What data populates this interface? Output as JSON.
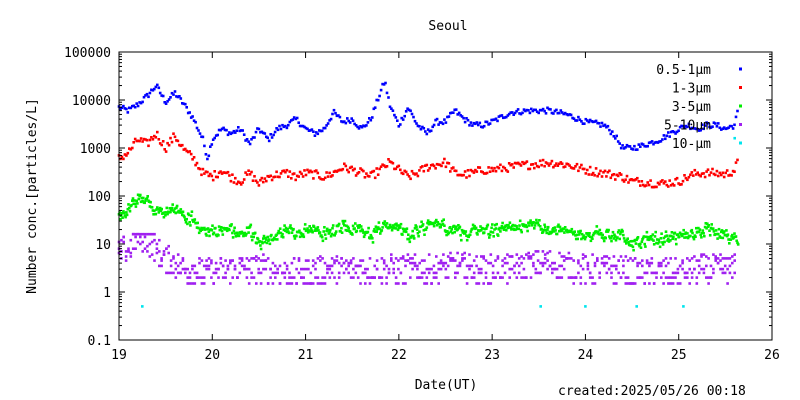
{
  "footer": {
    "created": "created:2025/05/26 00:18"
  },
  "chart_data": {
    "type": "scatter",
    "title": "Seoul",
    "xlabel": "Date(UT)",
    "ylabel": "Number conc.[particles/L]",
    "xlim": [
      19,
      26
    ],
    "ylim": [
      0.1,
      100000
    ],
    "y_scale": "log",
    "x_ticks": [
      "19",
      "20",
      "21",
      "22",
      "23",
      "24",
      "25",
      "26"
    ],
    "y_ticks": [
      "0.1",
      "1",
      "10",
      "100",
      "1000",
      "10000",
      "100000"
    ],
    "legend_position": "top-right",
    "grid": false,
    "series": [
      {
        "name": "0.5-1μm",
        "color": "#0000ff",
        "x": [
          19.0,
          19.1,
          19.2,
          19.3,
          19.4,
          19.5,
          19.6,
          19.7,
          19.8,
          19.9,
          19.95,
          20.0,
          20.1,
          20.2,
          20.3,
          20.4,
          20.5,
          20.6,
          20.7,
          20.8,
          20.9,
          21.0,
          21.1,
          21.2,
          21.3,
          21.4,
          21.5,
          21.6,
          21.7,
          21.8,
          21.85,
          21.9,
          22.0,
          22.1,
          22.2,
          22.3,
          22.4,
          22.5,
          22.6,
          22.7,
          22.8,
          22.9,
          23.0,
          23.2,
          23.4,
          23.6,
          23.8,
          24.0,
          24.2,
          24.3,
          24.4,
          24.5,
          24.6,
          24.8,
          25.0,
          25.1,
          25.2,
          25.3,
          25.4,
          25.5,
          25.6,
          25.63
        ],
        "y": [
          7000,
          6000,
          8000,
          12000,
          20000,
          9000,
          14000,
          8000,
          4000,
          1500,
          600,
          1500,
          2500,
          2000,
          2500,
          1200,
          2500,
          1500,
          2500,
          3000,
          4000,
          2500,
          2000,
          2500,
          5500,
          3500,
          4000,
          2500,
          4000,
          14000,
          25000,
          8000,
          3000,
          7000,
          3000,
          2000,
          3500,
          3500,
          6000,
          4000,
          3000,
          3000,
          3500,
          5500,
          6000,
          6000,
          5000,
          3500,
          3000,
          2000,
          1000,
          1000,
          1100,
          1500,
          2500,
          3000,
          2500,
          3000,
          3000,
          2500,
          3000,
          5500
        ]
      },
      {
        "name": "1-3μm",
        "color": "#ff0000",
        "x": [
          19.0,
          19.1,
          19.2,
          19.3,
          19.4,
          19.5,
          19.6,
          19.7,
          19.8,
          19.9,
          20.0,
          20.1,
          20.2,
          20.3,
          20.4,
          20.5,
          20.6,
          20.7,
          20.8,
          20.9,
          21.0,
          21.1,
          21.2,
          21.3,
          21.4,
          21.5,
          21.6,
          21.7,
          21.8,
          21.9,
          22.0,
          22.1,
          22.2,
          22.3,
          22.4,
          22.5,
          22.6,
          22.7,
          22.8,
          22.9,
          23.0,
          23.2,
          23.4,
          23.6,
          23.8,
          24.0,
          24.2,
          24.4,
          24.5,
          24.6,
          24.8,
          25.0,
          25.1,
          25.2,
          25.3,
          25.4,
          25.5,
          25.6,
          25.63
        ],
        "y": [
          600,
          800,
          1500,
          1200,
          2000,
          1000,
          1800,
          900,
          600,
          300,
          250,
          350,
          250,
          200,
          300,
          180,
          250,
          280,
          300,
          250,
          300,
          280,
          250,
          300,
          400,
          350,
          300,
          250,
          350,
          500,
          350,
          250,
          300,
          400,
          450,
          500,
          300,
          280,
          300,
          350,
          350,
          400,
          450,
          500,
          450,
          350,
          300,
          250,
          200,
          200,
          180,
          200,
          250,
          300,
          300,
          300,
          280,
          350,
          500
        ]
      },
      {
        "name": "3-5μm",
        "color": "#00ee00",
        "x": [
          19.0,
          19.1,
          19.2,
          19.3,
          19.4,
          19.5,
          19.6,
          19.7,
          19.8,
          19.9,
          20.0,
          20.1,
          20.2,
          20.3,
          20.4,
          20.5,
          20.6,
          20.7,
          20.8,
          20.9,
          21.0,
          21.1,
          21.2,
          21.3,
          21.4,
          21.5,
          21.6,
          21.7,
          21.8,
          21.9,
          22.0,
          22.1,
          22.2,
          22.3,
          22.4,
          22.5,
          22.6,
          22.7,
          22.8,
          22.9,
          23.0,
          23.2,
          23.4,
          23.6,
          23.8,
          24.0,
          24.2,
          24.4,
          24.5,
          24.6,
          24.8,
          25.0,
          25.1,
          25.2,
          25.3,
          25.4,
          25.5,
          25.6,
          25.63
        ],
        "y": [
          35,
          50,
          100,
          80,
          50,
          40,
          50,
          40,
          30,
          20,
          18,
          20,
          20,
          15,
          20,
          10,
          15,
          15,
          20,
          15,
          18,
          20,
          15,
          18,
          25,
          20,
          20,
          15,
          20,
          25,
          20,
          15,
          20,
          25,
          30,
          20,
          20,
          15,
          20,
          20,
          18,
          20,
          25,
          20,
          18,
          15,
          15,
          15,
          10,
          12,
          12,
          15,
          15,
          18,
          20,
          18,
          15,
          15,
          12
        ]
      },
      {
        "name": "5-10μm",
        "color": "#a020f0",
        "x": [
          19.0,
          19.1,
          19.15,
          19.2,
          19.3,
          19.4,
          19.5,
          19.6,
          19.7,
          19.8,
          19.9,
          20.0,
          20.2,
          20.4,
          20.6,
          20.8,
          21.0,
          21.2,
          21.4,
          21.6,
          21.8,
          22.0,
          22.2,
          22.4,
          22.6,
          22.8,
          23.0,
          23.2,
          23.4,
          23.6,
          23.8,
          24.0,
          24.2,
          24.4,
          24.6,
          24.8,
          25.0,
          25.2,
          25.4,
          25.6
        ],
        "y": [
          6,
          8,
          10,
          15,
          12,
          8,
          5,
          4,
          3,
          3,
          2.5,
          2.5,
          3,
          3,
          3,
          2.5,
          2.5,
          3,
          3,
          3,
          3,
          3,
          3,
          3,
          3.5,
          3,
          3,
          3,
          3.5,
          4,
          3.5,
          3,
          3,
          3,
          2.5,
          2.5,
          2.5,
          3,
          3,
          3
        ]
      },
      {
        "name": "10-μm",
        "color": "#00e5ee",
        "x": [
          19.25,
          23.52,
          24.0,
          24.55,
          25.05,
          25.6
        ],
        "y": [
          0.5,
          0.5,
          0.5,
          0.5,
          0.5,
          1600
        ]
      }
    ]
  }
}
